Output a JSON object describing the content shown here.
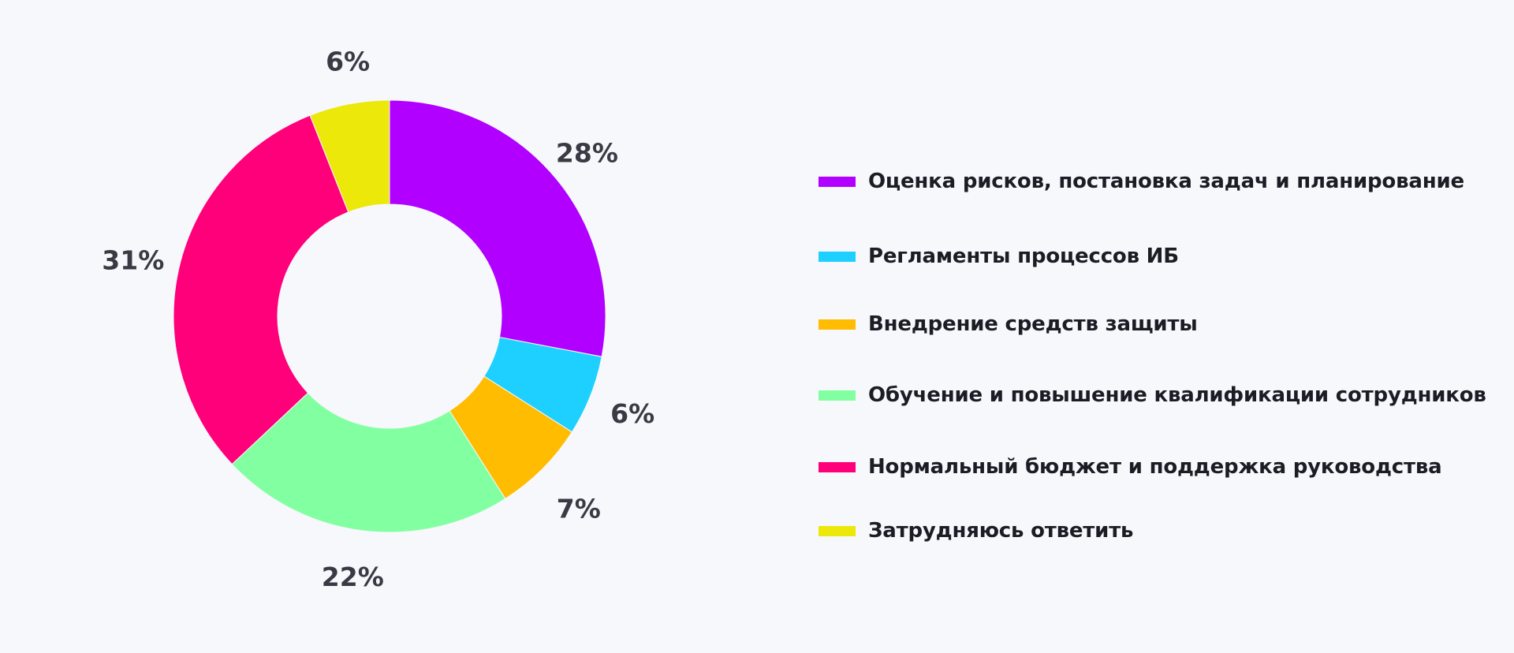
{
  "chart_data": {
    "type": "pie",
    "donut": true,
    "slices": [
      {
        "name": "Оценка рисков, постановка задач и планирование",
        "value": 28,
        "label": "28%",
        "color": "#b100ff"
      },
      {
        "name": "Регламенты процессов ИБ",
        "value": 6,
        "label": "6%",
        "color": "#1dd0ff"
      },
      {
        "name": "Внедрение средств защиты",
        "value": 7,
        "label": "7%",
        "color": "#ffbc00"
      },
      {
        "name": "Обучение и повышение квалификации сотрудников",
        "value": 22,
        "label": "22%",
        "color": "#82ffa1"
      },
      {
        "name": "Нормальный бюджет и поддержка руководства",
        "value": 31,
        "label": "31%",
        "color": "#ff007a"
      },
      {
        "name": "Затрудняюсь ответить",
        "value": 6,
        "label": "6%",
        "color": "#ebe80a"
      }
    ],
    "legend_position": "right"
  }
}
